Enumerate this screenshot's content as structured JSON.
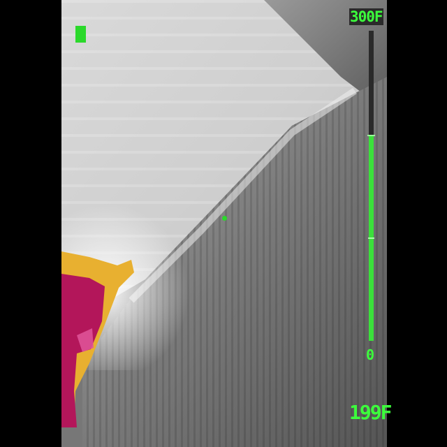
{
  "app": {
    "scale": {
      "top_label": "300F",
      "bottom_label": "0",
      "level_fraction": 0.663
    },
    "spot_temperature": "199F",
    "colors": {
      "hud": "#3cff3c",
      "hot": "#b3165a",
      "warm": "#e8b030"
    },
    "icons": [
      "mode-indicator-icon",
      "crosshair-icon"
    ]
  }
}
